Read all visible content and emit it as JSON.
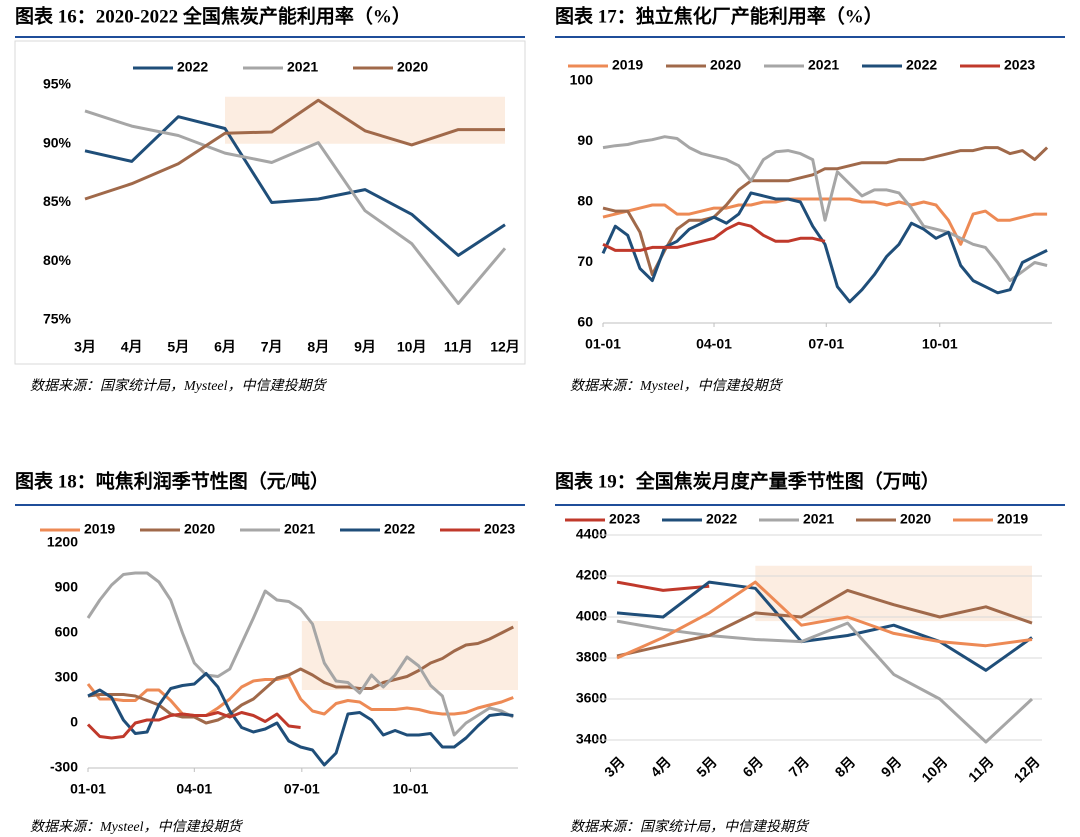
{
  "chart_data": [
    {
      "type": "line",
      "title": "图表 16：2020-2022 全国焦炭产能利用率（%）",
      "source": "数据来源：国家统计局，Mysteel，中信建投期货",
      "categories": [
        "3月",
        "4月",
        "5月",
        "6月",
        "7月",
        "8月",
        "9月",
        "10月",
        "11月",
        "12月"
      ],
      "ylim": [
        75,
        95
      ],
      "yticks": [
        {
          "value": 75,
          "label": "75%"
        },
        {
          "value": 80,
          "label": "80%"
        },
        {
          "value": 85,
          "label": "85%"
        },
        {
          "value": 90,
          "label": "90%"
        },
        {
          "value": 95,
          "label": "95%"
        }
      ],
      "grid": false,
      "highlight": {
        "from": "6月",
        "to": "12月",
        "ylim": [
          90,
          94
        ]
      },
      "series": [
        {
          "name": "2022",
          "color": "#1f4e79",
          "values": [
            89.4,
            88.5,
            92.3,
            91.3,
            85.0,
            85.3,
            86.1,
            84.0,
            80.5,
            83.1
          ]
        },
        {
          "name": "2021",
          "color": "#a6a6a6",
          "values": [
            92.8,
            91.5,
            90.7,
            89.2,
            88.4,
            90.1,
            84.3,
            81.5,
            76.4,
            81.1
          ]
        },
        {
          "name": "2020",
          "color": "#a0694a",
          "values": [
            85.3,
            86.6,
            88.3,
            90.9,
            91.0,
            93.7,
            91.1,
            89.9,
            91.2,
            91.2
          ]
        }
      ]
    },
    {
      "type": "line",
      "title": "图表 17：独立焦化厂产能利用率（%）",
      "source": "数据来源：Mysteel，中信建投期货",
      "x": [
        1,
        11,
        21,
        31,
        41,
        51,
        61,
        71,
        81,
        91,
        101,
        111,
        121,
        131,
        141,
        151,
        161,
        171,
        181,
        191,
        201,
        211,
        221,
        231,
        241,
        251,
        261,
        271,
        281,
        291,
        301,
        311,
        321,
        331,
        341,
        351,
        361
      ],
      "xlim": [
        1,
        365
      ],
      "xticks": [
        {
          "value": 1,
          "label": "01-01"
        },
        {
          "value": 91,
          "label": "04-01"
        },
        {
          "value": 182,
          "label": "07-01"
        },
        {
          "value": 274,
          "label": "10-01"
        }
      ],
      "ylim": [
        60,
        100
      ],
      "yticks": [
        60,
        70,
        80,
        90,
        100
      ],
      "grid": false,
      "series": [
        {
          "name": "2019",
          "color": "#ed8a55",
          "values": [
            77.5,
            78,
            78.5,
            79,
            79.5,
            79.5,
            78,
            78,
            78.5,
            79,
            79,
            79.5,
            79.5,
            80,
            80,
            80.5,
            80.5,
            80.5,
            80.5,
            80.5,
            80.5,
            80,
            80,
            79.5,
            80,
            79.5,
            80,
            79.5,
            77,
            73,
            78,
            78.5,
            77,
            77,
            77.5,
            78,
            78
          ]
        },
        {
          "name": "2020",
          "color": "#a0694a",
          "values": [
            79,
            78.5,
            78.5,
            75,
            68,
            72,
            75.5,
            77,
            77,
            77.5,
            79.5,
            82,
            83.5,
            83.5,
            83.5,
            83.5,
            84,
            84.5,
            85.5,
            85.5,
            86,
            86.5,
            86.5,
            86.5,
            87,
            87,
            87,
            87.5,
            88,
            88.5,
            88.5,
            89,
            89,
            88,
            88.5,
            87,
            89
          ]
        },
        {
          "name": "2021",
          "color": "#a6a6a6",
          "values": [
            89,
            89.3,
            89.5,
            90,
            90.3,
            90.8,
            90.5,
            89,
            88,
            87.5,
            87,
            86,
            83.5,
            87,
            88.3,
            88.5,
            88,
            87,
            77,
            85,
            83,
            81,
            82,
            82,
            81.5,
            79,
            76,
            75.5,
            75,
            74,
            73,
            72.5,
            70,
            67,
            68.5,
            70,
            69.5
          ]
        },
        {
          "name": "2022",
          "color": "#1f4e79",
          "values": [
            71.5,
            76,
            74.5,
            69,
            67,
            72.5,
            73.5,
            75.5,
            76.5,
            77.5,
            76.5,
            78,
            81.5,
            81,
            80.5,
            80.5,
            80,
            76,
            73,
            66,
            63.5,
            65.5,
            68,
            71,
            73,
            76.5,
            75.5,
            74,
            75,
            69.5,
            67,
            66,
            65,
            65.5,
            70,
            71,
            72
          ]
        },
        {
          "name": "2023",
          "color": "#c0392b",
          "values": [
            73,
            72,
            72,
            72,
            72.5,
            72.5,
            72.5,
            73,
            73.5,
            74,
            75.5,
            76.5,
            76,
            74.5,
            73.5,
            73.5,
            74,
            74,
            73.5,
            null,
            null,
            null,
            null,
            null,
            null,
            null,
            null,
            null,
            null,
            null,
            null,
            null,
            null,
            null,
            null,
            null,
            null
          ]
        }
      ]
    },
    {
      "type": "line",
      "title": "图表 18：吨焦利润季节性图（元/吨）",
      "source": "数据来源：Mysteel，中信建投期货",
      "x": [
        1,
        11,
        21,
        31,
        41,
        51,
        61,
        71,
        81,
        91,
        101,
        111,
        121,
        131,
        141,
        151,
        161,
        171,
        181,
        191,
        201,
        211,
        221,
        231,
        241,
        251,
        261,
        271,
        281,
        291,
        301,
        311,
        321,
        331,
        341,
        351,
        361
      ],
      "xlim": [
        1,
        365
      ],
      "xticks": [
        {
          "value": 1,
          "label": "01-01"
        },
        {
          "value": 91,
          "label": "04-01"
        },
        {
          "value": 182,
          "label": "07-01"
        },
        {
          "value": 274,
          "label": "10-01"
        }
      ],
      "ylim": [
        -300,
        1200
      ],
      "yticks": [
        -300,
        0,
        300,
        600,
        900,
        1200
      ],
      "grid": false,
      "highlight": {
        "xlim": [
          182,
          365
        ],
        "ylim": [
          220,
          680
        ]
      },
      "series": [
        {
          "name": "2019",
          "color": "#ed8a55",
          "values": [
            260,
            160,
            160,
            150,
            150,
            220,
            220,
            150,
            60,
            50,
            50,
            100,
            160,
            240,
            280,
            290,
            290,
            310,
            160,
            80,
            60,
            130,
            150,
            140,
            90,
            90,
            90,
            100,
            90,
            70,
            60,
            60,
            70,
            100,
            120,
            140,
            170
          ]
        },
        {
          "name": "2020",
          "color": "#a0694a",
          "values": [
            180,
            190,
            190,
            190,
            180,
            150,
            120,
            60,
            40,
            40,
            0,
            20,
            60,
            120,
            160,
            230,
            300,
            320,
            360,
            320,
            270,
            240,
            240,
            230,
            230,
            270,
            290,
            310,
            350,
            400,
            430,
            480,
            520,
            530,
            560,
            600,
            640
          ]
        },
        {
          "name": "2021",
          "color": "#a6a6a6",
          "values": [
            700,
            820,
            920,
            990,
            1000,
            1000,
            940,
            820,
            600,
            400,
            320,
            310,
            360,
            530,
            700,
            880,
            820,
            810,
            760,
            660,
            400,
            280,
            270,
            200,
            320,
            240,
            320,
            440,
            380,
            250,
            180,
            -80,
            0,
            50,
            100,
            80,
            40
          ]
        },
        {
          "name": "2022",
          "color": "#1f4e79",
          "values": [
            180,
            220,
            170,
            20,
            -70,
            -60,
            120,
            230,
            250,
            260,
            330,
            240,
            80,
            -30,
            -60,
            -40,
            0,
            -120,
            -160,
            -180,
            -280,
            -200,
            60,
            70,
            20,
            -80,
            -50,
            -80,
            -80,
            -70,
            -160,
            -160,
            -100,
            -20,
            50,
            60,
            50
          ]
        },
        {
          "name": "2023",
          "color": "#c0392b",
          "values": [
            -10,
            -90,
            -100,
            -90,
            0,
            20,
            20,
            50,
            60,
            50,
            50,
            70,
            40,
            70,
            50,
            10,
            60,
            -20,
            -30,
            null,
            null,
            null,
            null,
            null,
            null,
            null,
            null,
            null,
            null,
            null,
            null,
            null,
            null,
            null,
            null,
            null,
            null
          ]
        }
      ]
    },
    {
      "type": "line",
      "title": "图表 19：全国焦炭月度产量季节性图（万吨）",
      "source": "数据来源：国家统计局，中信建投期货",
      "categories": [
        "3月",
        "4月",
        "5月",
        "6月",
        "7月",
        "8月",
        "9月",
        "10月",
        "11月",
        "12月"
      ],
      "ylim": [
        3400,
        4400
      ],
      "yticks": [
        3400,
        3600,
        3800,
        4000,
        4200,
        4400
      ],
      "grid": true,
      "highlight": {
        "from": "6月",
        "to": "12月",
        "ylim": [
          3980,
          4250
        ]
      },
      "series": [
        {
          "name": "2023",
          "color": "#c0392b",
          "values": [
            4170,
            4130,
            4150,
            null,
            null,
            null,
            null,
            null,
            null,
            null
          ]
        },
        {
          "name": "2022",
          "color": "#1f4e79",
          "values": [
            4020,
            4000,
            4170,
            4140,
            3880,
            3910,
            3960,
            3880,
            3740,
            3900
          ]
        },
        {
          "name": "2021",
          "color": "#a6a6a6",
          "values": [
            3980,
            3940,
            3910,
            3890,
            3880,
            3970,
            3720,
            3600,
            3390,
            3600
          ]
        },
        {
          "name": "2020",
          "color": "#a0694a",
          "values": [
            3810,
            3860,
            3910,
            4020,
            4000,
            4130,
            4060,
            4000,
            4050,
            3970
          ]
        },
        {
          "name": "2019",
          "color": "#ed8a55",
          "values": [
            3800,
            3900,
            4020,
            4170,
            3960,
            4000,
            3920,
            3880,
            3860,
            3890
          ]
        }
      ]
    }
  ]
}
